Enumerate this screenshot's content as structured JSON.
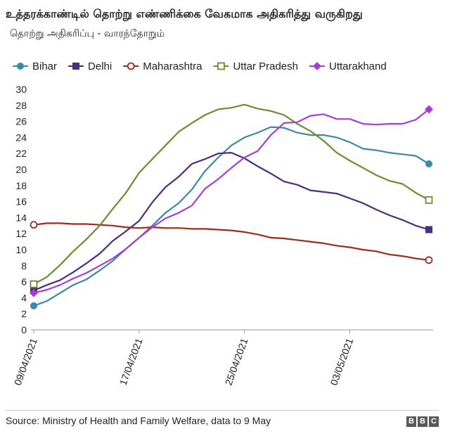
{
  "header": {
    "title": "உத்தரக்காண்டில் தொற்று எண்ணிக்கை வேகமாக அதிகரித்து வருகிறது",
    "subtitle": "தொற்று அதிகரிப்பு - வாரந்தோறும்"
  },
  "footer": {
    "source": "Source: Ministry of Health and Family Welfare, data to 9 May",
    "logo_letters": [
      "B",
      "B",
      "C"
    ]
  },
  "chart_data": {
    "type": "line",
    "title": "உத்தரக்காண்டில் தொற்று எண்ணிக்கை வேகமாக அதிகரித்து வருகிறது",
    "subtitle": "தொற்று அதிகரிப்பு - வாரந்தோறும்",
    "xlabel": "",
    "ylabel": "",
    "ylim": [
      0,
      30
    ],
    "yticks": [
      0,
      2,
      4,
      6,
      8,
      10,
      12,
      14,
      16,
      18,
      20,
      22,
      24,
      26,
      28,
      30
    ],
    "grid": false,
    "legend_position": "top",
    "x": [
      "09/04/2021",
      "10/04/2021",
      "11/04/2021",
      "12/04/2021",
      "13/04/2021",
      "14/04/2021",
      "15/04/2021",
      "16/04/2021",
      "17/04/2021",
      "18/04/2021",
      "19/04/2021",
      "20/04/2021",
      "21/04/2021",
      "22/04/2021",
      "23/04/2021",
      "24/04/2021",
      "25/04/2021",
      "26/04/2021",
      "27/04/2021",
      "28/04/2021",
      "29/04/2021",
      "30/04/2021",
      "01/05/2021",
      "02/05/2021",
      "03/05/2021",
      "04/05/2021",
      "05/05/2021",
      "06/05/2021",
      "07/05/2021",
      "08/05/2021",
      "09/05/2021"
    ],
    "xtick_labels": [
      {
        "index": 0,
        "label": "09/04/2021"
      },
      {
        "index": 8,
        "label": "17/04/2021"
      },
      {
        "index": 16,
        "label": "25/04/2021"
      },
      {
        "index": 24,
        "label": "03/05/2021"
      }
    ],
    "series": [
      {
        "name": "Bihar",
        "color": "#3a89a8",
        "marker": "circle",
        "values": [
          3.0,
          3.6,
          4.6,
          5.6,
          6.3,
          7.4,
          8.6,
          10.1,
          11.5,
          13.0,
          14.6,
          15.8,
          17.5,
          19.8,
          21.5,
          23.0,
          24.0,
          24.6,
          25.3,
          25.2,
          24.6,
          24.3,
          24.3,
          24.0,
          23.4,
          22.6,
          22.4,
          22.1,
          21.9,
          21.7,
          20.7
        ]
      },
      {
        "name": "Delhi",
        "color": "#4b2c7d",
        "marker": "square",
        "values": [
          4.9,
          5.6,
          6.2,
          7.2,
          8.3,
          9.5,
          11.1,
          12.3,
          13.6,
          15.9,
          17.8,
          19.1,
          20.7,
          21.3,
          22.0,
          22.1,
          21.4,
          20.4,
          19.5,
          18.5,
          18.1,
          17.4,
          17.2,
          17.0,
          16.4,
          15.8,
          15.0,
          14.3,
          13.7,
          13.0,
          12.5
        ]
      },
      {
        "name": "Maharashtra",
        "color": "#9e2b1e",
        "marker": "circle-open",
        "values": [
          13.1,
          13.3,
          13.3,
          13.2,
          13.2,
          13.1,
          13.0,
          12.8,
          12.7,
          12.8,
          12.7,
          12.7,
          12.6,
          12.6,
          12.5,
          12.4,
          12.2,
          11.9,
          11.5,
          11.4,
          11.2,
          11.0,
          10.8,
          10.5,
          10.3,
          10.0,
          9.8,
          9.4,
          9.2,
          8.9,
          8.7
        ]
      },
      {
        "name": "Uttar Pradesh",
        "color": "#6a8f2d",
        "marker": "square-open",
        "values": [
          5.7,
          6.6,
          8.1,
          9.8,
          11.3,
          13.0,
          15.1,
          17.1,
          19.6,
          21.3,
          23.0,
          24.7,
          25.8,
          26.8,
          27.5,
          27.7,
          28.1,
          27.6,
          27.3,
          26.8,
          25.7,
          24.8,
          23.6,
          22.1,
          21.1,
          20.2,
          19.3,
          18.6,
          18.2,
          17.1,
          16.2
        ]
      },
      {
        "name": "Uttarakhand",
        "color": "#a53dd6",
        "marker": "diamond",
        "values": [
          4.6,
          5.0,
          5.6,
          6.4,
          7.1,
          8.0,
          8.9,
          10.1,
          11.5,
          12.8,
          13.9,
          14.6,
          15.5,
          17.6,
          18.8,
          20.2,
          21.5,
          22.3,
          24.3,
          25.8,
          25.9,
          26.7,
          26.9,
          26.3,
          26.3,
          25.7,
          25.6,
          25.7,
          25.7,
          26.2,
          27.5
        ]
      }
    ]
  }
}
